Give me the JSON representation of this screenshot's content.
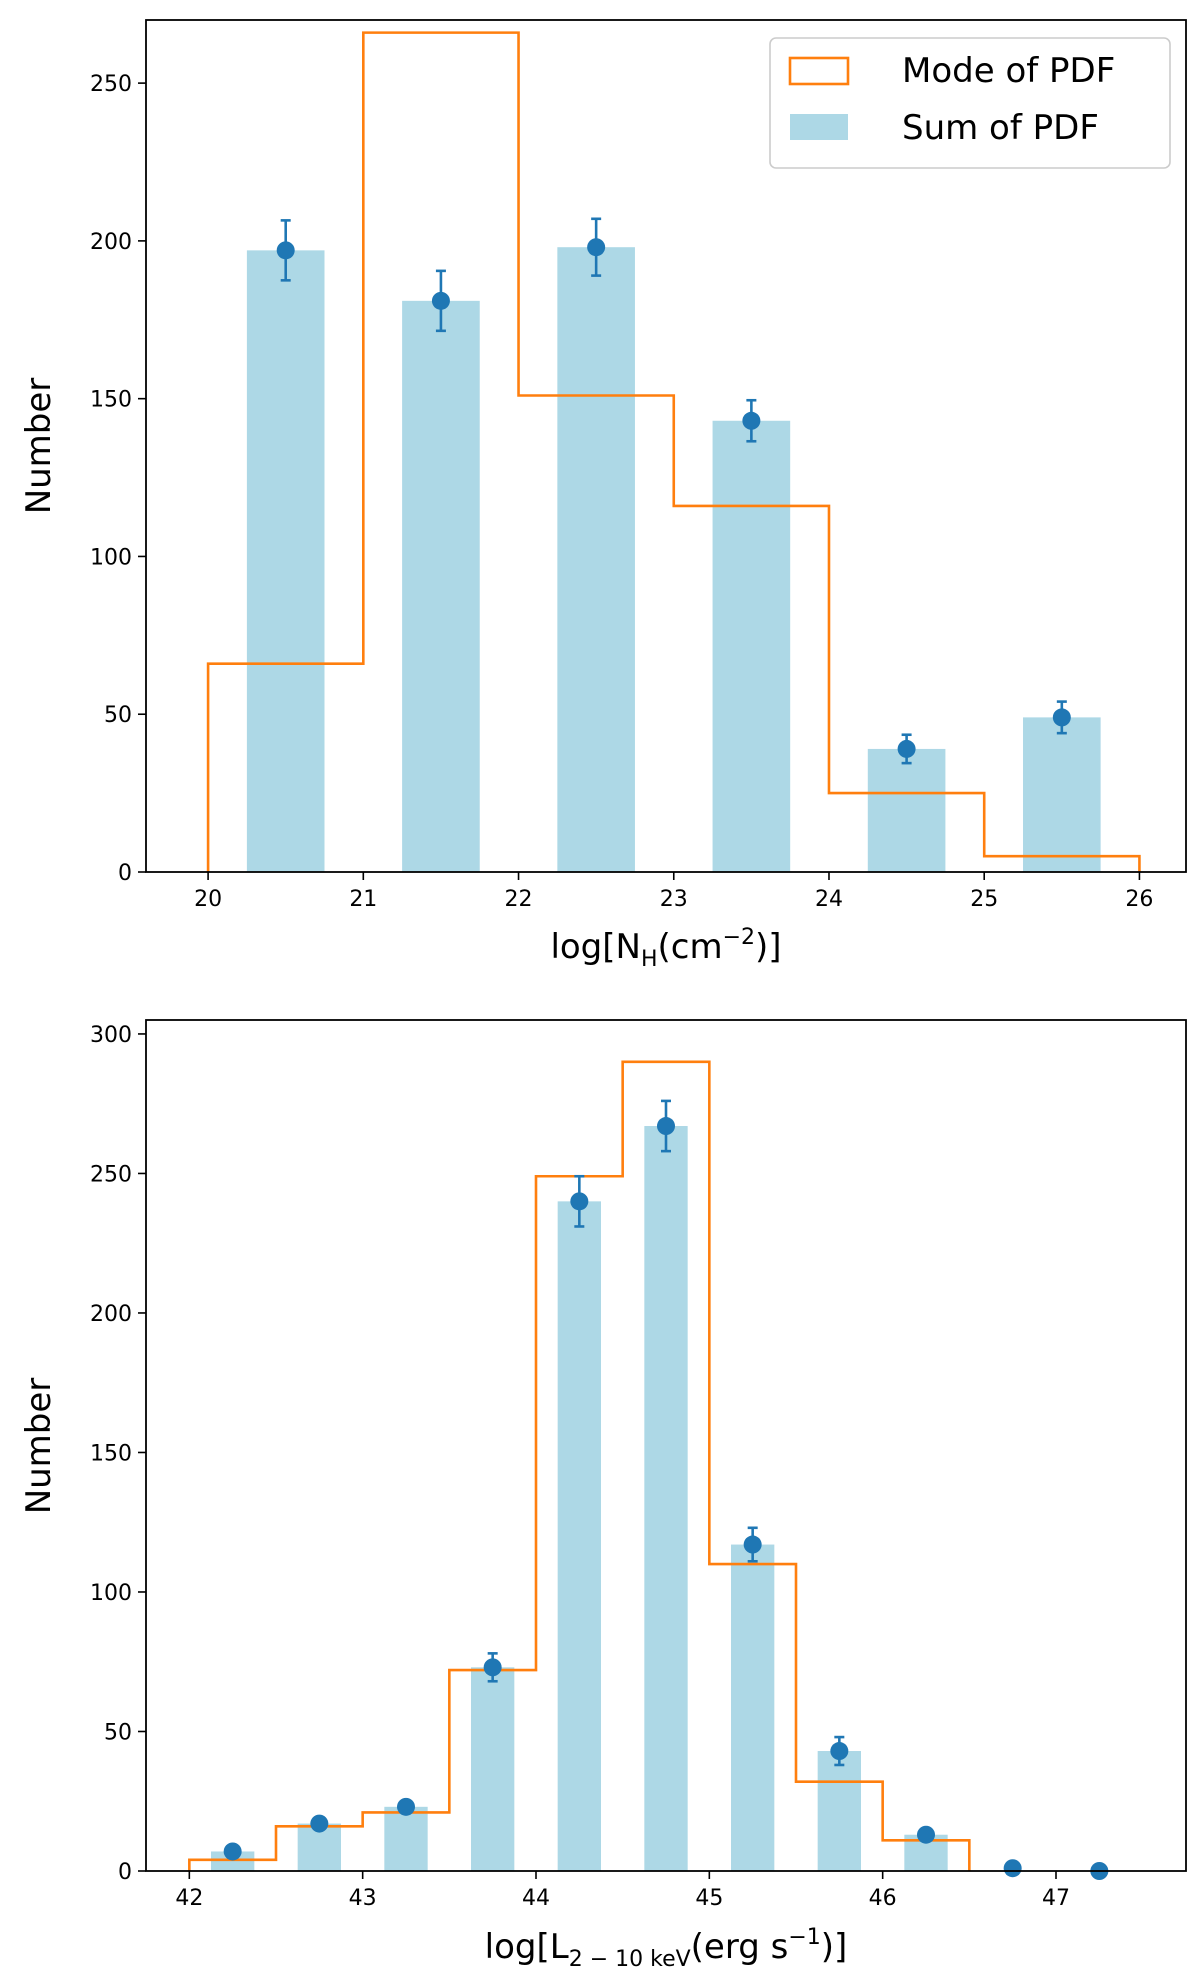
{
  "chart_data": [
    {
      "type": "bar",
      "xlabel": "log[N_H(cm^-2)]",
      "xlabel_parts": {
        "pre": "log[N",
        "sub": "H",
        "mid": "(cm",
        "sup": "−2",
        "post": ")]"
      },
      "ylabel": "Number",
      "xlim": [
        19.6,
        26.3
      ],
      "ylim": [
        0,
        270
      ],
      "xticks": [
        20,
        21,
        22,
        23,
        24,
        25,
        26
      ],
      "yticks": [
        0,
        50,
        100,
        150,
        200,
        250
      ],
      "legend": {
        "placement": "top-right"
      },
      "step_series": {
        "name": "Mode of PDF",
        "color": "#ff7f0e",
        "edges": [
          20,
          21,
          22,
          23,
          24,
          25,
          26
        ],
        "values": [
          66,
          266,
          151,
          116,
          25,
          5
        ]
      },
      "bar_series": {
        "name": "Sum of PDF",
        "color": "#add8e6",
        "centers": [
          20.5,
          21.5,
          22.5,
          23.5,
          24.5,
          25.5
        ],
        "width": 0.5,
        "values": [
          197,
          181,
          198,
          143,
          39,
          49
        ]
      },
      "points": {
        "color": "#1f77b4",
        "x": [
          20.5,
          21.5,
          22.5,
          23.5,
          24.5,
          25.5
        ],
        "y": [
          197,
          181,
          198,
          143,
          39,
          49
        ],
        "err": [
          9.5,
          9.5,
          9,
          6.5,
          4.5,
          5
        ]
      }
    },
    {
      "type": "bar",
      "xlabel": "log[L_2-10 keV(erg s^-1)]",
      "xlabel_parts": {
        "pre": "log[L",
        "sub": "2 − 10 keV",
        "mid": "(erg s",
        "sup": "−1",
        "post": ")]"
      },
      "ylabel": "Number",
      "xlim": [
        41.75,
        47.75
      ],
      "ylim": [
        0,
        305
      ],
      "xticks": [
        42,
        43,
        44,
        45,
        46,
        47
      ],
      "yticks": [
        0,
        50,
        100,
        150,
        200,
        250,
        300
      ],
      "step_series": {
        "name": "Mode of PDF",
        "color": "#ff7f0e",
        "edges": [
          42,
          42.5,
          43,
          43.5,
          44,
          44.5,
          45,
          45.5,
          46,
          46.5
        ],
        "values": [
          4,
          16,
          21,
          72,
          249,
          290,
          110,
          32,
          11
        ]
      },
      "bar_series": {
        "name": "Sum of PDF",
        "color": "#add8e6",
        "centers": [
          42.25,
          42.75,
          43.25,
          43.75,
          44.25,
          44.75,
          45.25,
          45.75,
          46.25
        ],
        "width": 0.25,
        "values": [
          7,
          17,
          23,
          73,
          240,
          267,
          117,
          43,
          13
        ]
      },
      "points": {
        "color": "#1f77b4",
        "x": [
          42.25,
          42.75,
          43.25,
          43.75,
          44.25,
          44.75,
          45.25,
          45.75,
          46.25,
          46.75,
          47.25
        ],
        "y": [
          7,
          17,
          23,
          73,
          240,
          267,
          117,
          43,
          13,
          1,
          0
        ],
        "err": [
          0,
          0,
          2,
          5,
          9,
          9,
          6,
          5,
          0,
          0,
          0
        ]
      }
    }
  ]
}
